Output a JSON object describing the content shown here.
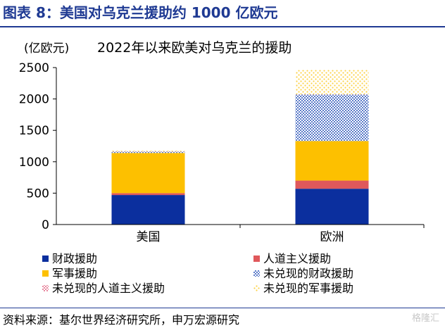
{
  "figure_title": "图表 8：美国对乌克兰援助约 1000 亿欧元",
  "source_note": "资料来源：基尔世界经济研究所，申万宏源研究",
  "watermark": "格隆汇",
  "chart_data": {
    "type": "bar",
    "stacked": true,
    "title": "2022年以来欧美对乌克兰的援助",
    "unit_label": "(亿欧元)",
    "categories": [
      "美国",
      "欧洲"
    ],
    "ylim": [
      0,
      2500
    ],
    "yticks": [
      0,
      500,
      1000,
      1500,
      2000,
      2500
    ],
    "series": [
      {
        "name": "财政援助",
        "values": [
          470,
          570
        ],
        "color": "#0b2f9e",
        "pattern": "solid"
      },
      {
        "name": "人道主义援助",
        "values": [
          30,
          130
        ],
        "color": "#e0585b",
        "pattern": "solid"
      },
      {
        "name": "军事援助",
        "values": [
          640,
          630
        ],
        "color": "#fdc000",
        "pattern": "solid"
      },
      {
        "name": "未兑现的财政援助",
        "values": [
          20,
          740
        ],
        "color": "#5b7bc9",
        "pattern": "dots"
      },
      {
        "name": "未兑现的人道主义援助",
        "values": [
          5,
          5
        ],
        "color": "#e88aa0",
        "pattern": "dots"
      },
      {
        "name": "未兑现的军事援助",
        "values": [
          10,
          385
        ],
        "color": "#fdd348",
        "pattern": "dots"
      }
    ],
    "legend_position": "bottom"
  }
}
